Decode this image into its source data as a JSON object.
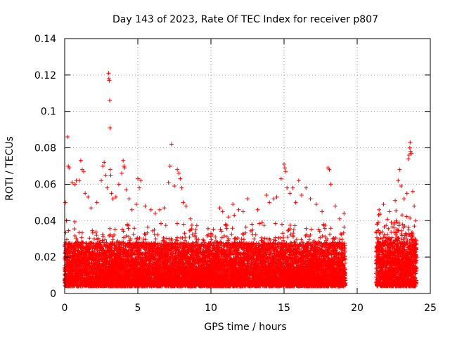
{
  "chart_data": {
    "type": "scatter",
    "title": "Day 143 of 2023, Rate Of TEC Index for receiver p807",
    "xlabel": "GPS time / hours",
    "ylabel": "ROTI / TECUs",
    "xlim": [
      0,
      25
    ],
    "ylim": [
      0,
      0.14
    ],
    "xticks": [
      0,
      5,
      10,
      15,
      20,
      25
    ],
    "xtick_labels": [
      "0",
      "5",
      "10",
      "15",
      "20",
      "25"
    ],
    "yticks": [
      0,
      0.02,
      0.04,
      0.06,
      0.08,
      0.1,
      0.12,
      0.14
    ],
    "ytick_labels": [
      "0",
      "0.02",
      "0.04",
      "0.06",
      "0.08",
      "0.1",
      "0.12",
      "0.14"
    ],
    "grid": true,
    "marker": "+",
    "color": "#ff0000",
    "data_gap_hours": [
      19.2,
      21.3
    ],
    "series": [
      {
        "name": "p807 ROTI",
        "points": [
          [
            0.05,
            0.05
          ],
          [
            0.12,
            0.04
          ],
          [
            0.2,
            0.086
          ],
          [
            0.25,
            0.07
          ],
          [
            0.3,
            0.069
          ],
          [
            0.5,
            0.061
          ],
          [
            0.7,
            0.06
          ],
          [
            0.8,
            0.062
          ],
          [
            1.0,
            0.062
          ],
          [
            1.1,
            0.073
          ],
          [
            1.2,
            0.068
          ],
          [
            1.3,
            0.067
          ],
          [
            1.4,
            0.055
          ],
          [
            1.6,
            0.053
          ],
          [
            1.8,
            0.047
          ],
          [
            2.2,
            0.05
          ],
          [
            2.5,
            0.062
          ],
          [
            2.6,
            0.07
          ],
          [
            2.7,
            0.072
          ],
          [
            2.8,
            0.065
          ],
          [
            2.9,
            0.058
          ],
          [
            3.0,
            0.121
          ],
          [
            3.02,
            0.118
          ],
          [
            3.05,
            0.117
          ],
          [
            3.08,
            0.106
          ],
          [
            3.1,
            0.091
          ],
          [
            3.12,
            0.068
          ],
          [
            3.15,
            0.065
          ],
          [
            3.2,
            0.055
          ],
          [
            3.3,
            0.052
          ],
          [
            3.5,
            0.053
          ],
          [
            3.7,
            0.06
          ],
          [
            3.9,
            0.066
          ],
          [
            4.0,
            0.073
          ],
          [
            4.05,
            0.07
          ],
          [
            4.1,
            0.069
          ],
          [
            4.2,
            0.057
          ],
          [
            4.4,
            0.052
          ],
          [
            4.6,
            0.046
          ],
          [
            4.9,
            0.049
          ],
          [
            5.0,
            0.063
          ],
          [
            5.1,
            0.058
          ],
          [
            5.2,
            0.062
          ],
          [
            5.5,
            0.048
          ],
          [
            5.9,
            0.046
          ],
          [
            6.2,
            0.044
          ],
          [
            6.5,
            0.046
          ],
          [
            6.8,
            0.047
          ],
          [
            7.1,
            0.061
          ],
          [
            7.2,
            0.07
          ],
          [
            7.3,
            0.082
          ],
          [
            7.5,
            0.059
          ],
          [
            7.7,
            0.068
          ],
          [
            7.8,
            0.066
          ],
          [
            7.9,
            0.063
          ],
          [
            8.0,
            0.058
          ],
          [
            8.1,
            0.05
          ],
          [
            8.3,
            0.048
          ],
          [
            8.6,
            0.041
          ],
          [
            9.0,
            0.03
          ],
          [
            9.5,
            0.029
          ],
          [
            10.0,
            0.033
          ],
          [
            10.3,
            0.031
          ],
          [
            10.6,
            0.047
          ],
          [
            10.8,
            0.045
          ],
          [
            11.2,
            0.042
          ],
          [
            11.5,
            0.049
          ],
          [
            11.6,
            0.043
          ],
          [
            11.9,
            0.046
          ],
          [
            12.2,
            0.045
          ],
          [
            12.5,
            0.052
          ],
          [
            12.8,
            0.038
          ],
          [
            13.2,
            0.046
          ],
          [
            13.5,
            0.039
          ],
          [
            13.8,
            0.054
          ],
          [
            14.0,
            0.05
          ],
          [
            14.3,
            0.052
          ],
          [
            14.5,
            0.053
          ],
          [
            14.8,
            0.063
          ],
          [
            15.0,
            0.071
          ],
          [
            15.05,
            0.069
          ],
          [
            15.1,
            0.067
          ],
          [
            15.2,
            0.058
          ],
          [
            15.4,
            0.055
          ],
          [
            15.6,
            0.058
          ],
          [
            15.8,
            0.05
          ],
          [
            16.0,
            0.062
          ],
          [
            16.2,
            0.054
          ],
          [
            16.5,
            0.058
          ],
          [
            16.8,
            0.052
          ],
          [
            17.2,
            0.049
          ],
          [
            17.6,
            0.045
          ],
          [
            18.0,
            0.069
          ],
          [
            18.1,
            0.068
          ],
          [
            18.2,
            0.06
          ],
          [
            18.5,
            0.048
          ],
          [
            18.8,
            0.041
          ],
          [
            19.1,
            0.044
          ],
          [
            21.5,
            0.046
          ],
          [
            21.8,
            0.049
          ],
          [
            22.2,
            0.045
          ],
          [
            22.6,
            0.051
          ],
          [
            22.8,
            0.062
          ],
          [
            22.9,
            0.068
          ],
          [
            23.0,
            0.059
          ],
          [
            23.2,
            0.052
          ],
          [
            23.4,
            0.055
          ],
          [
            23.5,
            0.074
          ],
          [
            23.55,
            0.076
          ],
          [
            23.6,
            0.08
          ],
          [
            23.62,
            0.083
          ],
          [
            23.65,
            0.078
          ],
          [
            23.7,
            0.077
          ],
          [
            23.8,
            0.056
          ],
          [
            23.9,
            0.048
          ],
          [
            24.0,
            0.04
          ]
        ]
      }
    ]
  }
}
